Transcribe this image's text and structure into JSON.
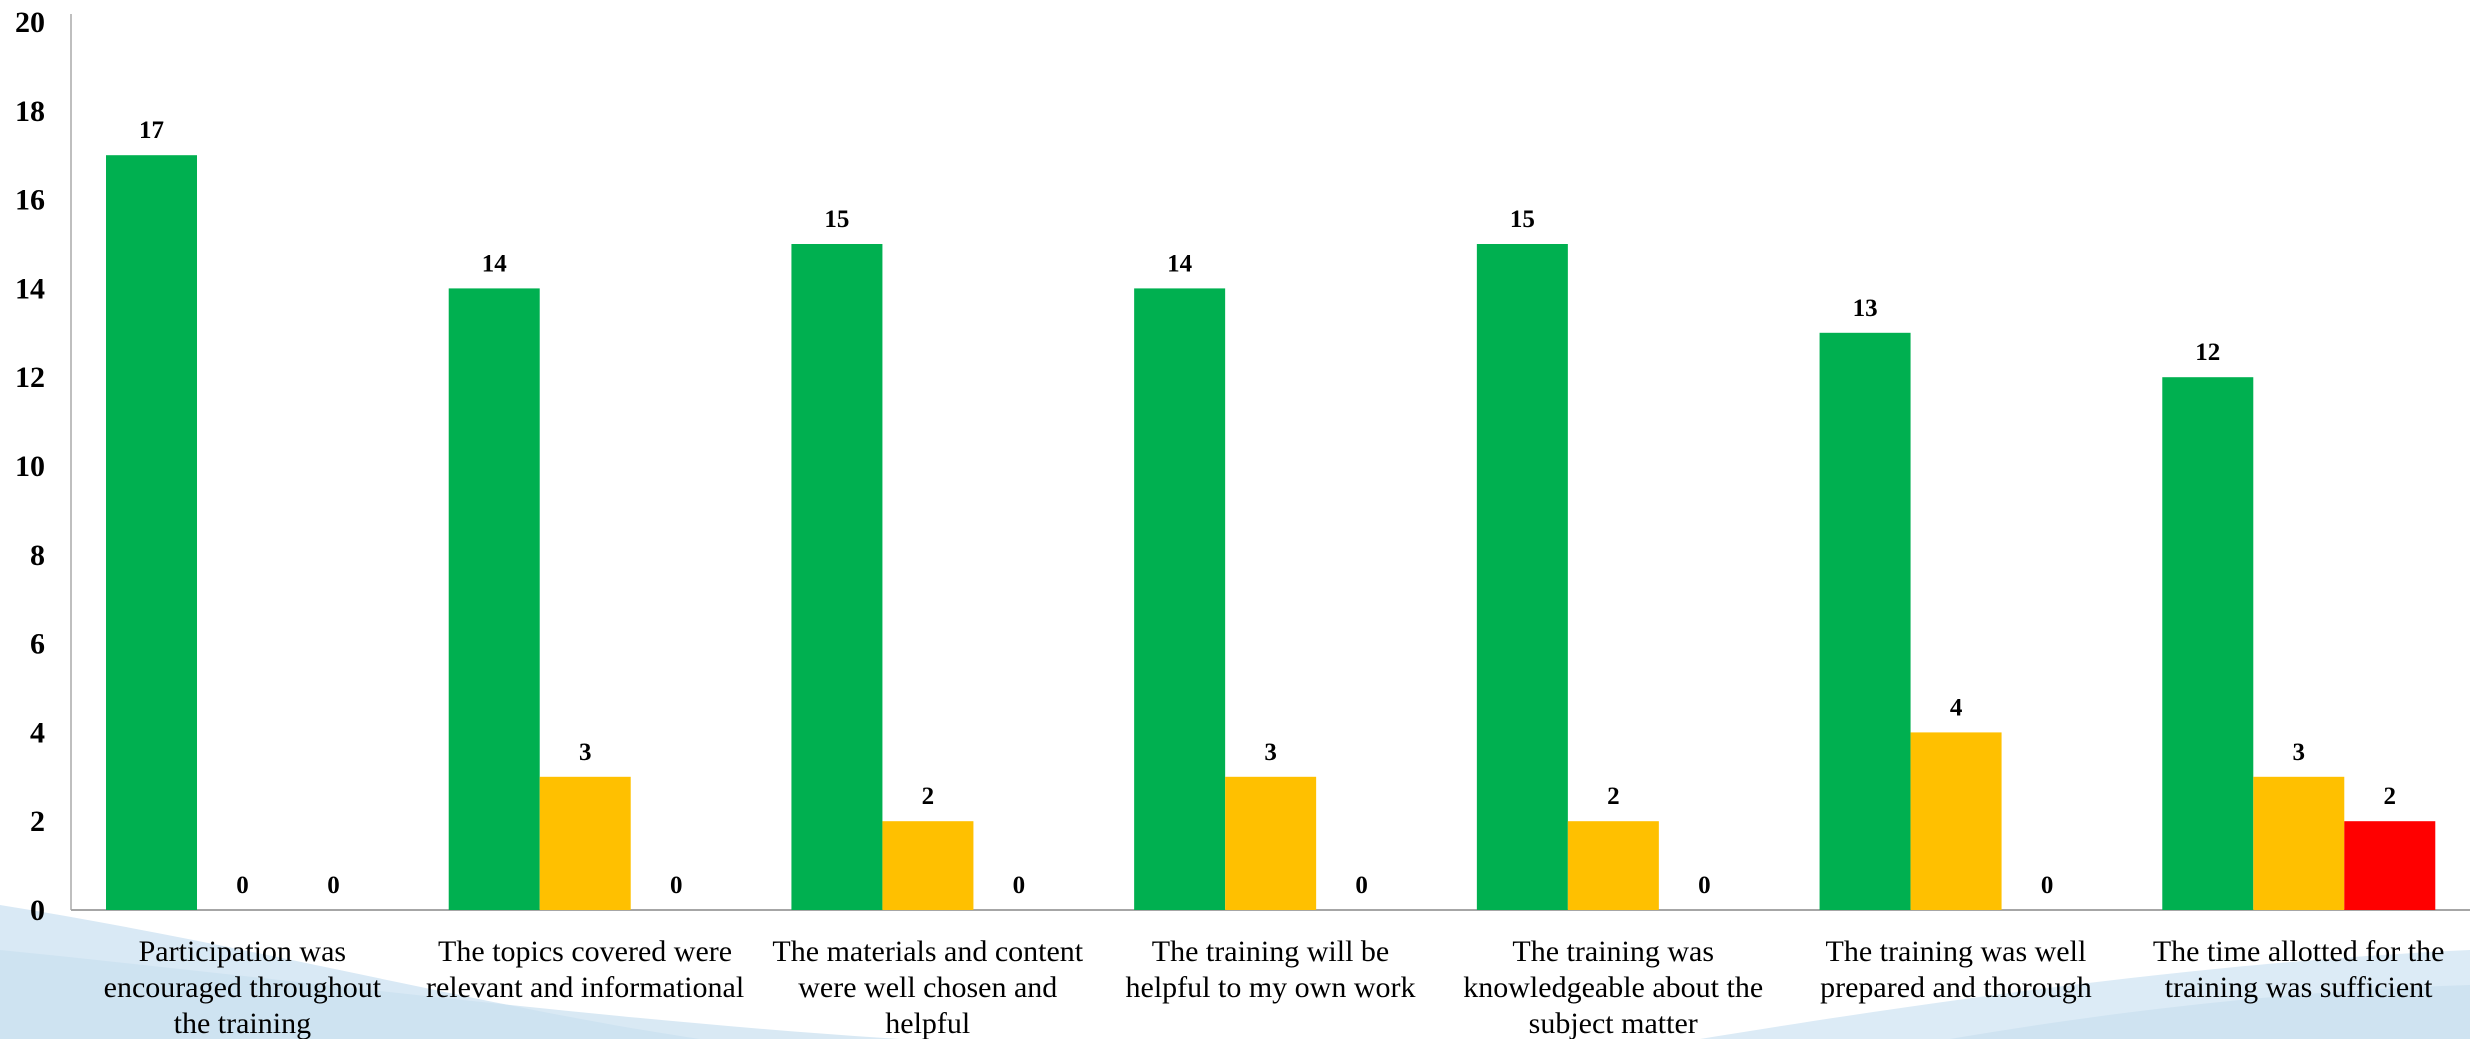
{
  "chart_data": {
    "type": "bar",
    "title": "",
    "xlabel": "",
    "ylabel": "",
    "ylim": [
      0,
      20
    ],
    "yticks": [
      0,
      2,
      4,
      6,
      8,
      10,
      12,
      14,
      16,
      18,
      20
    ],
    "grid": false,
    "legend": "none",
    "categories": [
      [
        "Participation was",
        "encouraged throughout",
        "the training"
      ],
      [
        "The topics covered were",
        "relevant and informational"
      ],
      [
        "The materials and content",
        "were well chosen and",
        "helpful"
      ],
      [
        "The training will be",
        "helpful to my own work"
      ],
      [
        "The training was",
        "knowledgeable about the",
        "subject matter"
      ],
      [
        "The training was well",
        "prepared and thorough"
      ],
      [
        "The time allotted for the",
        "training was sufficient"
      ]
    ],
    "series": [
      {
        "color": "#00B050",
        "values": [
          17,
          14,
          15,
          14,
          15,
          13,
          12
        ]
      },
      {
        "color": "#FFC000",
        "values": [
          0,
          3,
          2,
          3,
          2,
          4,
          3
        ]
      },
      {
        "color": "#FF0000",
        "values": [
          0,
          0,
          0,
          0,
          0,
          0,
          2
        ]
      }
    ]
  }
}
